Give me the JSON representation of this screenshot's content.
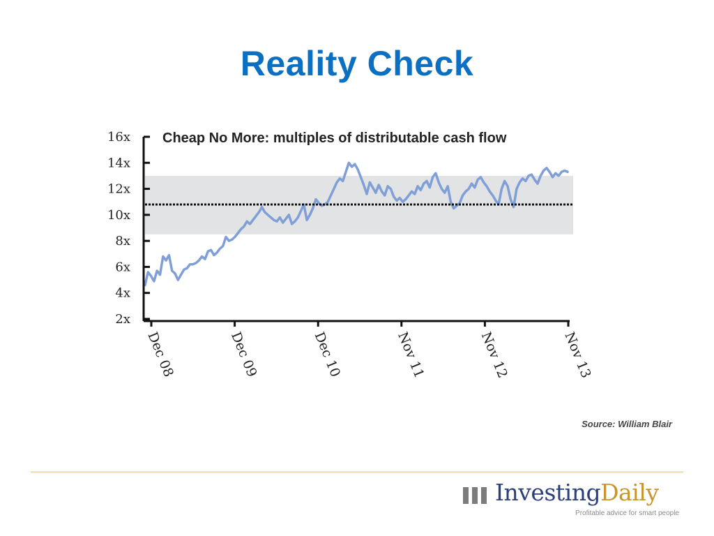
{
  "slide": {
    "title": "Reality Check",
    "source": "Source: William Blair"
  },
  "logo": {
    "word1": "Investing",
    "word2": "Daily",
    "tagline": "Profitable advice for smart people",
    "colors": {
      "word1": "#2b3f7a",
      "word2": "#c8962c",
      "mark": "#7c7c7c"
    }
  },
  "colors": {
    "title": "#0b6fc2",
    "line": "#7f9fd6",
    "band": "#e1e3e5",
    "average_line": "#111111"
  },
  "chart_data": {
    "type": "line",
    "title": "Cheap No More: multiples of distributable cash flow",
    "xlabel": "",
    "ylabel": "",
    "ylim": [
      2,
      16
    ],
    "y_ticks": [
      "16x",
      "14x",
      "12x",
      "10x",
      "8x",
      "6x",
      "4x",
      "2x"
    ],
    "x_ticks": [
      "Dec 08",
      "Dec 09",
      "Dec 10",
      "Nov 11",
      "Nov 12",
      "Nov 13"
    ],
    "grid": false,
    "band": {
      "low": 8.5,
      "high": 13.0
    },
    "average": 10.8,
    "series": [
      {
        "values": [
          4.6,
          5.6,
          5.3,
          4.9,
          5.7,
          5.4,
          6.8,
          6.5,
          6.9,
          5.7,
          5.5,
          5.0,
          5.4,
          5.8,
          5.9,
          6.2,
          6.2,
          6.3,
          6.5,
          6.8,
          6.6,
          7.2,
          7.3,
          6.9,
          7.1,
          7.4,
          7.6,
          8.3,
          8.0,
          8.1,
          8.3,
          8.6,
          8.9,
          9.1,
          9.5,
          9.3,
          9.6,
          9.9,
          10.2,
          10.6,
          10.2,
          10.0,
          9.8,
          9.6,
          9.5,
          9.8,
          9.4,
          9.7,
          10.0,
          9.3,
          9.5,
          9.8,
          10.3,
          10.8,
          9.6,
          10.0,
          10.5,
          11.2,
          10.9,
          10.7,
          10.8,
          11.0,
          11.5,
          12.0,
          12.5,
          12.8,
          12.6,
          13.3,
          14.0,
          13.7,
          13.9,
          13.5,
          12.9,
          12.3,
          11.6,
          12.5,
          12.1,
          11.7,
          12.3,
          11.8,
          11.5,
          12.2,
          12.0,
          11.4,
          11.1,
          11.3,
          11.0,
          11.2,
          11.5,
          11.8,
          11.6,
          12.2,
          11.9,
          12.4,
          12.6,
          12.1,
          12.9,
          13.2,
          12.5,
          12.0,
          11.7,
          12.2,
          11.0,
          10.5,
          10.7,
          10.9,
          11.5,
          11.8,
          12.0,
          12.4,
          12.1,
          12.7,
          12.9,
          12.5,
          12.2,
          11.8,
          11.5,
          11.1,
          10.8,
          12.0,
          12.6,
          12.2,
          11.2,
          10.6,
          12.0,
          12.5,
          12.8,
          12.6,
          13.0,
          13.1,
          12.7,
          12.4,
          13.0,
          13.4,
          13.6,
          13.3,
          12.9,
          13.2,
          13.0,
          13.3,
          13.4,
          13.3
        ]
      }
    ]
  }
}
